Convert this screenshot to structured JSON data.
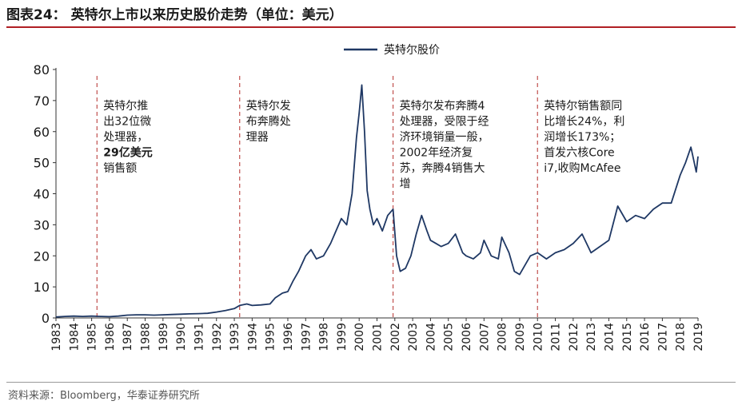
{
  "header": {
    "title": "图表24： 英特尔上市以来历史股价走势（单位：美元）"
  },
  "footer": {
    "source": "资料来源：Bloomberg，华泰证券研究所"
  },
  "colors": {
    "line": "#1f3864",
    "event_line": "#c0504d",
    "title_rule": "#b01f24"
  },
  "chart_data": {
    "type": "line",
    "title": "",
    "xlabel": "",
    "ylabel": "",
    "ylim": [
      0,
      80
    ],
    "y_ticks": [
      "0",
      "10",
      "20",
      "30",
      "40",
      "50",
      "60",
      "70",
      "80"
    ],
    "x_ticks": [
      "1983",
      "1984",
      "1985",
      "1986",
      "1987",
      "1988",
      "1989",
      "1990",
      "1991",
      "1992",
      "1993",
      "1994",
      "1995",
      "1996",
      "1997",
      "1998",
      "1999",
      "2000",
      "2001",
      "2002",
      "2003",
      "2004",
      "2005",
      "2006",
      "2007",
      "2008",
      "2009",
      "2010",
      "2011",
      "2012",
      "2013",
      "2014",
      "2015",
      "2016",
      "2017",
      "2018",
      "2019"
    ],
    "legend": {
      "position": "top-center",
      "entries": [
        "英特尔股价"
      ]
    },
    "grid": false,
    "series": [
      {
        "name": "英特尔股价",
        "x": [
          1983.0,
          1983.5,
          1984.0,
          1984.5,
          1985.0,
          1985.5,
          1986.0,
          1986.5,
          1987.0,
          1987.5,
          1988.0,
          1988.5,
          1989.0,
          1989.5,
          1990.0,
          1990.5,
          1991.0,
          1991.5,
          1992.0,
          1992.5,
          1993.0,
          1993.3,
          1993.7,
          1994.0,
          1994.5,
          1995.0,
          1995.3,
          1995.7,
          1996.0,
          1996.3,
          1996.6,
          1997.0,
          1997.3,
          1997.6,
          1998.0,
          1998.4,
          1998.7,
          1999.0,
          1999.3,
          1999.6,
          1999.85,
          2000.0,
          2000.15,
          2000.3,
          2000.45,
          2000.6,
          2000.8,
          2001.0,
          2001.3,
          2001.6,
          2001.9,
          2002.1,
          2002.3,
          2002.6,
          2002.9,
          2003.2,
          2003.5,
          2003.8,
          2004.0,
          2004.3,
          2004.6,
          2005.0,
          2005.4,
          2005.8,
          2006.0,
          2006.4,
          2006.8,
          2007.0,
          2007.4,
          2007.8,
          2008.0,
          2008.4,
          2008.7,
          2009.0,
          2009.3,
          2009.6,
          2010.0,
          2010.5,
          2011.0,
          2011.5,
          2012.0,
          2012.5,
          2013.0,
          2013.5,
          2014.0,
          2014.5,
          2015.0,
          2015.5,
          2016.0,
          2016.5,
          2017.0,
          2017.5,
          2018.0,
          2018.3,
          2018.6,
          2018.9,
          2019.0
        ],
        "values": [
          0.3,
          0.5,
          0.6,
          0.5,
          0.6,
          0.5,
          0.4,
          0.6,
          0.9,
          1.0,
          1.0,
          0.9,
          1.0,
          1.1,
          1.2,
          1.3,
          1.4,
          1.5,
          1.9,
          2.4,
          3.0,
          4.0,
          4.5,
          4.0,
          4.2,
          4.5,
          6.5,
          8.0,
          8.5,
          12.0,
          15.0,
          20.0,
          22.0,
          19.0,
          20.0,
          24.0,
          28.0,
          32.0,
          30.0,
          40.0,
          58.0,
          66.0,
          75.0,
          60.0,
          41.0,
          35.0,
          30.0,
          32.0,
          28.0,
          33.0,
          35.0,
          20.0,
          15.0,
          16.0,
          20.0,
          27.0,
          33.0,
          28.0,
          25.0,
          24.0,
          23.0,
          24.0,
          27.0,
          21.0,
          20.0,
          19.0,
          21.0,
          25.0,
          20.0,
          19.0,
          26.0,
          21.0,
          15.0,
          14.0,
          17.0,
          20.0,
          21.0,
          19.0,
          21.0,
          22.0,
          24.0,
          27.0,
          21.0,
          23.0,
          25.0,
          36.0,
          31.0,
          33.0,
          32.0,
          35.0,
          37.0,
          37.0,
          46.0,
          50.0,
          55.0,
          47.0,
          52.0
        ]
      }
    ],
    "events": [
      {
        "x": 1985.3,
        "lines": [
          "英特尔推",
          "出32位微",
          "处理器，",
          "29亿美元",
          "销售额"
        ],
        "bold_line": 3
      },
      {
        "x": 1993.3,
        "lines": [
          "英特尔发",
          "布奔腾处",
          "理器"
        ],
        "bold_line": -1
      },
      {
        "x": 2001.9,
        "lines": [
          "英特尔发布奔腾4",
          "处理器，受限于经",
          "济环境销量一般，",
          "2002年经济复",
          "苏，奔腾4销售大",
          "增"
        ],
        "bold_line": -1
      },
      {
        "x": 2010.0,
        "lines": [
          "英特尔销售额同",
          "比增长24%，利",
          "润增长173%；",
          "首发六核Core",
          "i7,收购McAfee"
        ],
        "bold_line": -1
      }
    ]
  }
}
